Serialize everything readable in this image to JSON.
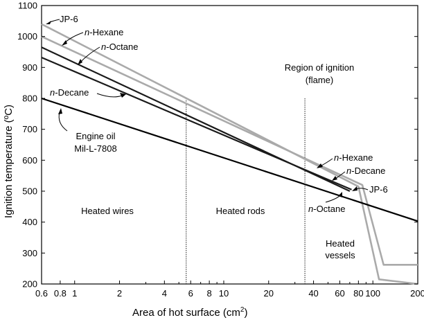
{
  "chart_data": {
    "type": "line",
    "xscale": "log",
    "xlim": [
      0.6,
      200
    ],
    "ylim": [
      200,
      1100
    ],
    "xlabel": "Area of hot surface (cm",
    "xlabel_sup": "2",
    "xlabel_end": ")",
    "ylabel": "Ignition temperature (ºC)",
    "x_ticks": [
      "0.6",
      "0.8",
      "1",
      "2",
      "4",
      "6",
      "8",
      "10",
      "20",
      "40",
      "60",
      "80",
      "100",
      "200"
    ],
    "y_ticks": [
      "200",
      "300",
      "400",
      "500",
      "600",
      "700",
      "800",
      "900",
      "1000",
      "1100"
    ],
    "series": [
      {
        "name": "JP-6",
        "color": "#aaaaaa",
        "x": [
          0.6,
          80,
          110,
          200
        ],
        "y": [
          1040,
          515,
          215,
          200
        ]
      },
      {
        "name": "n-Hexane",
        "color": "#aaaaaa",
        "x": [
          0.6,
          85,
          118,
          200
        ],
        "y": [
          1000,
          520,
          262,
          262
        ]
      },
      {
        "name": "n-Octane",
        "color": "#1a1a1a",
        "x": [
          0.6,
          70
        ],
        "y": [
          965,
          500
        ]
      },
      {
        "name": "n-Decane",
        "color": "#1a1a1a",
        "x": [
          0.6,
          72
        ],
        "y": [
          932,
          505
        ]
      },
      {
        "name": "Engine oil Mil-L-7808",
        "color": "#000000",
        "x": [
          0.6,
          200
        ],
        "y": [
          800,
          403
        ]
      }
    ],
    "vlines": [
      5.6,
      35
    ]
  },
  "annotations": {
    "jp6_left": "JP-6",
    "hexane_left_italic": "n",
    "hexane_left_rest": "-Hexane",
    "octane_left_italic": "n",
    "octane_left_rest": "-Octane",
    "decane_left_italic": "n",
    "decane_left_rest": "-Decane",
    "engine_line1": "Engine oil",
    "engine_line2": "Mil-L-7808",
    "region_line1": "Region of ignition",
    "region_line2": "(flame)",
    "hexane_right_italic": "n",
    "hexane_right_rest": "-Hexane",
    "decane_right_italic": "n",
    "decane_right_rest": "-Decane",
    "jp6_right": "JP-6",
    "octane_right_italic": "n",
    "octane_right_rest": "-Octane",
    "heated_wires": "Heated wires",
    "heated_rods": "Heated rods",
    "heated_vessels_1": "Heated",
    "heated_vessels_2": "vessels"
  }
}
